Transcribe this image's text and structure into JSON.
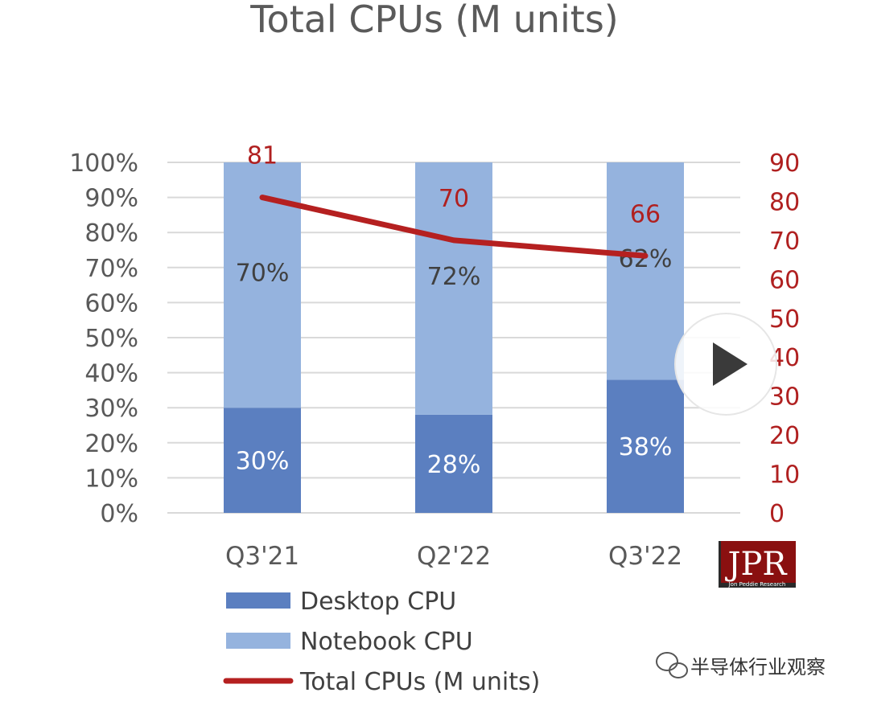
{
  "chart_data": {
    "type": "bar",
    "stacked": true,
    "title": "Total CPUs (M units)",
    "categories": [
      "Q3'21",
      "Q2'22",
      "Q3'22"
    ],
    "series": [
      {
        "name": "Desktop CPU",
        "values": [
          30,
          28,
          38
        ],
        "labels": [
          "30%",
          "28%",
          "38%"
        ],
        "color": "#5b7fc0"
      },
      {
        "name": "Notebook CPU",
        "values": [
          70,
          72,
          62
        ],
        "labels": [
          "70%",
          "72%",
          "62%"
        ],
        "color": "#95b3de"
      },
      {
        "name": "Total CPUs (M units)",
        "type": "line",
        "axis": "right",
        "values": [
          81,
          70,
          66
        ],
        "labels": [
          "81",
          "70",
          "66"
        ],
        "color": "#b52020"
      }
    ],
    "y_left": {
      "ylim": [
        0,
        100
      ],
      "ticks": [
        "0%",
        "10%",
        "20%",
        "30%",
        "40%",
        "50%",
        "60%",
        "70%",
        "80%",
        "90%",
        "100%"
      ]
    },
    "y_right": {
      "ylim": [
        0,
        90
      ],
      "ticks": [
        "0",
        "10",
        "20",
        "30",
        "40",
        "50",
        "60",
        "70",
        "80",
        "90"
      ]
    },
    "grid": true,
    "legend_position": "bottom"
  },
  "logo": {
    "text": "JPR",
    "subtext": "Jon Peddie Research"
  },
  "watermark": {
    "text": "半导体行业观察"
  },
  "play_button": {
    "icon": "play-icon"
  }
}
